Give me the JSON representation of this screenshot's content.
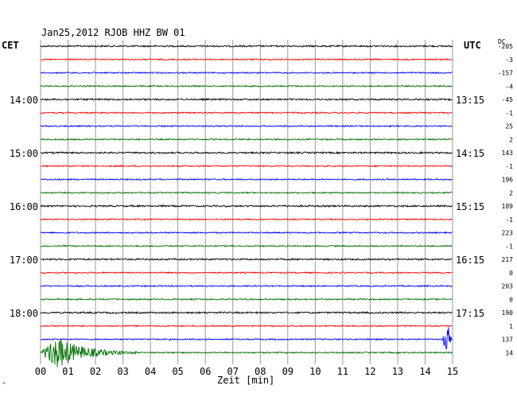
{
  "header": {
    "title": "Jan25,2012   RJOB HHZ BW 01",
    "left_zone": "CET",
    "right_zone": "UTC",
    "offset_label": "DC"
  },
  "footer": {
    "corner_mark": "^"
  },
  "chart_data": {
    "type": "line",
    "title": "Jan25,2012   RJOB HHZ BW 01",
    "xlabel": "Zeit [min]",
    "ylabel": "",
    "x_ticks": [
      "00",
      "01",
      "02",
      "03",
      "04",
      "05",
      "06",
      "07",
      "08",
      "09",
      "10",
      "11",
      "12",
      "13",
      "14",
      "15"
    ],
    "xlim": [
      0,
      15
    ],
    "grid": true,
    "trace_colors": [
      "#000000",
      "#ff0000",
      "#0000ff",
      "#007000"
    ],
    "left_hour_labels": [
      "14:00",
      "15:00",
      "16:00",
      "17:00",
      "18:00"
    ],
    "right_hour_labels": [
      "13:15",
      "14:15",
      "15:15",
      "16:15",
      "17:15"
    ],
    "first_labeled_trace_index": 4,
    "traces_per_hour": 4,
    "dc_offsets": [
      "-205",
      "-3",
      "-157",
      "-4",
      "-45",
      "-1",
      "25",
      "2",
      "143",
      "-1",
      "196",
      "2",
      "189",
      "-1",
      "223",
      "-1",
      "217",
      "0",
      "203",
      "0",
      "190",
      "1",
      "137",
      "14"
    ],
    "trace_count": 24,
    "events": [
      {
        "trace_index": 23,
        "start_min": 0.0,
        "peak_min": 0.6,
        "end_min": 3.5,
        "relative_amplitude": 1.0
      },
      {
        "trace_index": 22,
        "start_min": 14.6,
        "peak_min": 14.85,
        "end_min": 15.0,
        "relative_amplitude": 0.9
      }
    ]
  }
}
